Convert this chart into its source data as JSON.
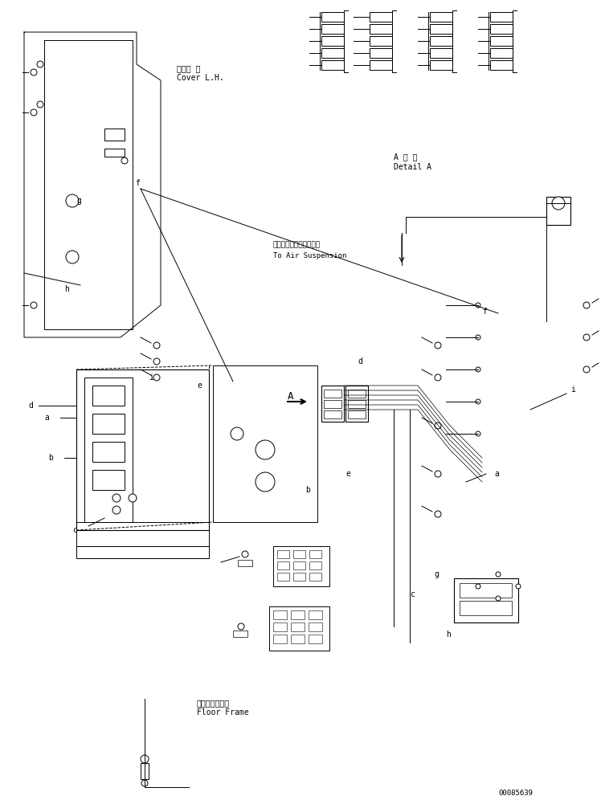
{
  "bg_color": "#ffffff",
  "line_color": "#000000",
  "fig_width": 7.48,
  "fig_height": 9.96,
  "dpi": 100,
  "labels": {
    "cover_lh_jp": "カバー 左",
    "cover_lh_en": "Cover L.H.",
    "air_suspension_jp": "エアーサスペンションへ",
    "air_suspension_en": "To Air Suspension",
    "floor_frame_jp": "フロアフレーム",
    "floor_frame_en": "Floor Frame",
    "detail_jp": "A 詳 細",
    "detail_en": "Detail A",
    "part_id": "00085639",
    "letter_a": "a",
    "letter_b": "b",
    "letter_c": "c",
    "letter_d": "d",
    "letter_e": "e",
    "letter_f": "f",
    "letter_g": "g",
    "letter_h": "h",
    "letter_i": "i",
    "letter_A": "A"
  }
}
